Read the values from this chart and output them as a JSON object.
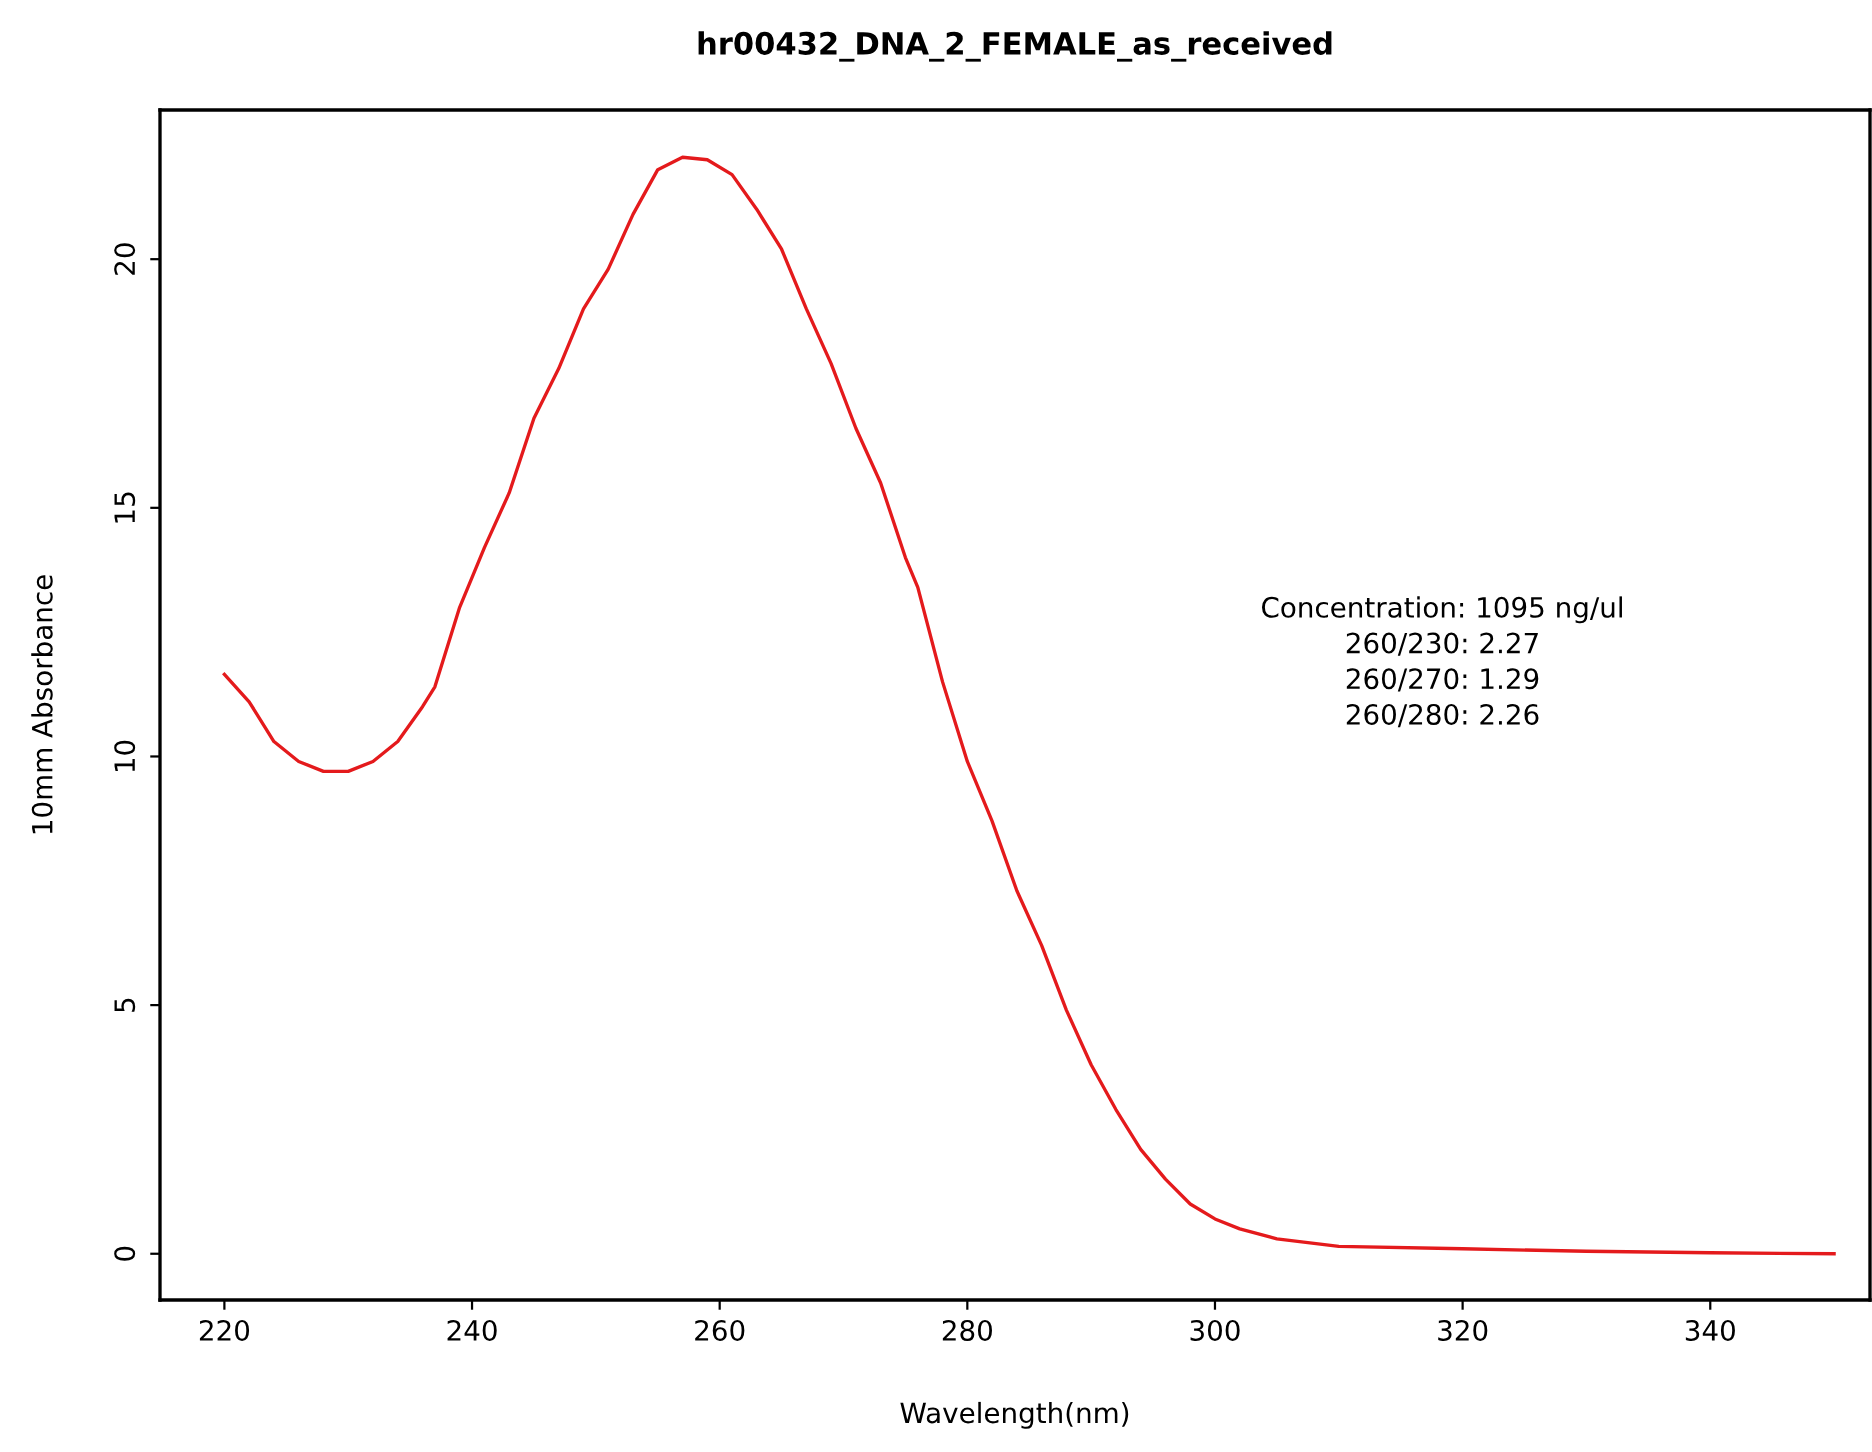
{
  "chart_data": {
    "type": "line",
    "title": "hr00432_DNA_2_FEMALE_as_received",
    "xlabel": "Wavelength(nm)",
    "ylabel": "10mm Absorbance",
    "xlim": [
      214.8,
      352.9
    ],
    "ylim": [
      -0.93,
      23.0
    ],
    "xticks": [
      220,
      240,
      260,
      280,
      300,
      320,
      340
    ],
    "yticks": [
      0,
      5,
      10,
      15,
      20
    ],
    "grid": false,
    "marker": "none",
    "line_style": "solid",
    "annotations": [
      "Concentration: 1095 ng/ul",
      "260/230: 2.27",
      "260/270: 1.29",
      "260/280: 2.26"
    ],
    "series": [
      {
        "color": "#e41a1c",
        "x": [
          220,
          222,
          224,
          226,
          228,
          230,
          232,
          234,
          236,
          237,
          239,
          241,
          243,
          245,
          247,
          249,
          251,
          253,
          255,
          257,
          259,
          261,
          263,
          265,
          267,
          269,
          271,
          273,
          275,
          276,
          278,
          280,
          282,
          284,
          286,
          288,
          290,
          292,
          294,
          296,
          298,
          300,
          302,
          305,
          310,
          320,
          330,
          340,
          350
        ],
        "values": [
          11.65,
          11.1,
          10.3,
          9.9,
          9.7,
          9.7,
          9.9,
          10.3,
          11.0,
          11.4,
          13.0,
          14.2,
          15.3,
          16.8,
          17.8,
          19.0,
          19.8,
          20.9,
          21.8,
          22.05,
          22.0,
          21.7,
          21.0,
          20.2,
          19.0,
          17.9,
          16.6,
          15.5,
          14.0,
          13.4,
          11.5,
          9.9,
          8.7,
          7.3,
          6.2,
          4.9,
          3.8,
          2.9,
          2.1,
          1.5,
          1.0,
          0.7,
          0.5,
          0.3,
          0.15,
          0.1,
          0.05,
          0.02,
          0.0
        ]
      }
    ]
  }
}
